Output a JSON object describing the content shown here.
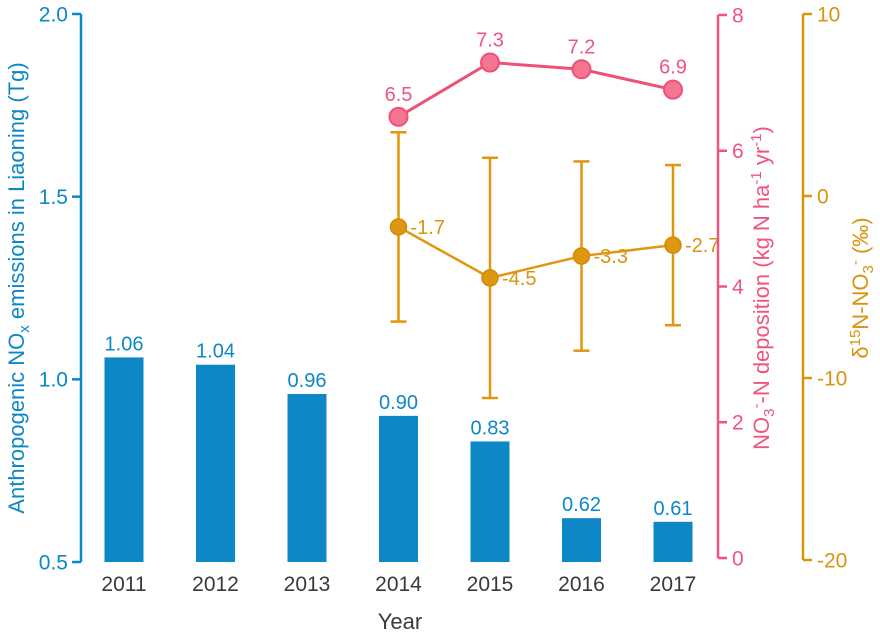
{
  "chart_data": {
    "type": "combo",
    "title": "",
    "xlabel": "Year",
    "categories": [
      "2011",
      "2012",
      "2013",
      "2014",
      "2015",
      "2016",
      "2017"
    ],
    "category_label_color": "#3a3a3a",
    "axes": {
      "left": {
        "label_parts": [
          {
            "t": "Anthropogenic NO"
          },
          {
            "t": "x",
            "script": "sub"
          },
          {
            "t": " emissions in Liaoning (Tg)"
          }
        ],
        "color": "#0e87c7",
        "range": [
          0.5,
          2.0
        ],
        "ticks": [
          {
            "v": 0.5,
            "label": "0.5"
          },
          {
            "v": 1.0,
            "label": "1.0"
          },
          {
            "v": 1.5,
            "label": "1.5"
          },
          {
            "v": 2.0,
            "label": "2.0"
          }
        ]
      },
      "right_inner": {
        "label_parts": [
          {
            "t": "NO"
          },
          {
            "t": "3",
            "script": "sub"
          },
          {
            "t": "-",
            "script": "sup"
          },
          {
            "t": "-N deposition (kg N ha"
          },
          {
            "t": "-1",
            "script": "sup"
          },
          {
            "t": " yr"
          },
          {
            "t": "-1",
            "script": "sup"
          },
          {
            "t": ")"
          }
        ],
        "color": "#f0547e",
        "range": [
          0,
          8
        ],
        "ticks": [
          {
            "v": 0,
            "label": "0"
          },
          {
            "v": 2,
            "label": "2"
          },
          {
            "v": 4,
            "label": "4"
          },
          {
            "v": 6,
            "label": "6"
          },
          {
            "v": 8,
            "label": "8"
          }
        ]
      },
      "right_outer": {
        "label_parts": [
          {
            "t": "δ"
          },
          {
            "t": "15",
            "script": "sup"
          },
          {
            "t": "N-NO"
          },
          {
            "t": "3",
            "script": "sub"
          },
          {
            "t": "-",
            "script": "sup"
          },
          {
            "t": " (‰)"
          }
        ],
        "color": "#d8940f",
        "range": [
          -20,
          10
        ],
        "ticks": [
          {
            "v": -20,
            "label": "-20"
          },
          {
            "v": -10,
            "label": "-10"
          },
          {
            "v": 0,
            "label": "0"
          },
          {
            "v": 10,
            "label": "10"
          }
        ]
      }
    },
    "series": [
      {
        "name": "Anthropogenic NOx emissions in Liaoning (Tg)",
        "type": "bar",
        "axis": "left",
        "bar_color": "#0e87c7",
        "label_color": "#0e87c7",
        "categories": [
          "2011",
          "2012",
          "2013",
          "2014",
          "2015",
          "2016",
          "2017"
        ],
        "values": [
          1.06,
          1.04,
          0.96,
          0.9,
          0.83,
          0.62,
          0.61
        ],
        "labels": [
          "1.06",
          "1.04",
          "0.96",
          "0.90",
          "0.83",
          "0.62",
          "0.61"
        ]
      },
      {
        "name": "NO3--N deposition (kg N ha-1 yr-1)",
        "type": "line",
        "axis": "right_inner",
        "line_color": "#ee5077",
        "marker_fill": "#f4758f",
        "marker_stroke": "#ee5077",
        "label_color": "#f0547e",
        "categories": [
          "2014",
          "2015",
          "2016",
          "2017"
        ],
        "values": [
          6.5,
          7.3,
          7.2,
          6.9
        ],
        "labels": [
          "6.5",
          "7.3",
          "7.2",
          "6.9"
        ]
      },
      {
        "name": "δ15N-NO3- (‰)",
        "type": "line_error",
        "axis": "right_outer",
        "line_color": "#e0960f",
        "marker_fill": "#e0960f",
        "marker_stroke": "#cf8a0b",
        "label_color": "#d8940f",
        "categories": [
          "2014",
          "2015",
          "2016",
          "2017"
        ],
        "values": [
          -1.7,
          -4.5,
          -3.3,
          -2.7
        ],
        "errors": [
          5.2,
          6.6,
          5.2,
          4.4
        ],
        "labels": [
          "-1.7",
          "-4.5",
          "-3.3",
          "-2.7"
        ]
      }
    ]
  }
}
